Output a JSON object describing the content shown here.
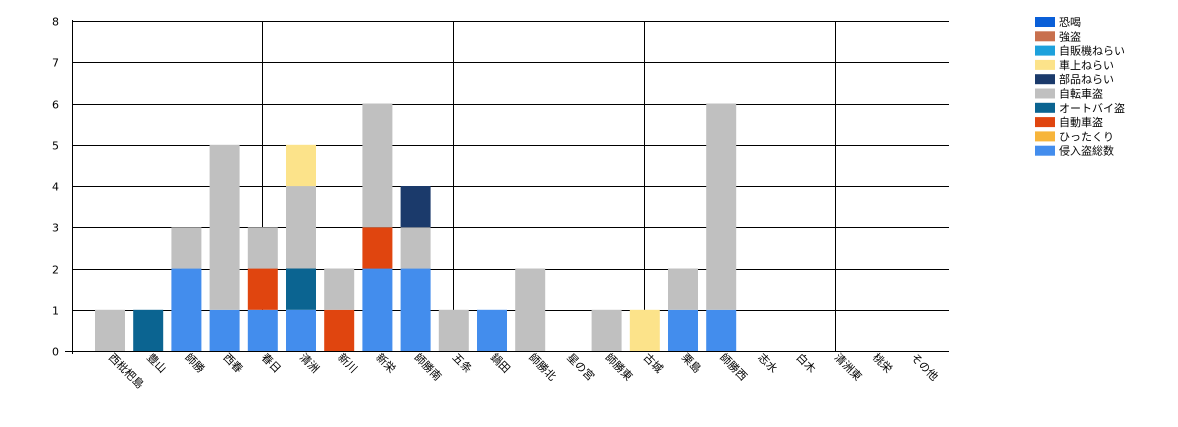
{
  "chart_data": {
    "type": "bar",
    "stacked": true,
    "title": "",
    "xlabel": "",
    "ylabel": "",
    "ylim": [
      0,
      8
    ],
    "yticks": [
      0,
      1,
      2,
      3,
      4,
      5,
      6,
      7,
      8
    ],
    "grid": true,
    "legend_position": "top-right",
    "categories": [
      "西枇杷島",
      "豊山",
      "師勝",
      "西春",
      "春日",
      "清洲",
      "新川",
      "新栄",
      "師勝南",
      "五条",
      "鍋田",
      "師勝北",
      "星の宮",
      "師勝東",
      "古城",
      "栗島",
      "師勝西",
      "志水",
      "白木",
      "清洲東",
      "桃栄",
      "その他"
    ],
    "series": [
      {
        "name": "恐喝",
        "color": "#0a5fd8",
        "values": [
          0,
          0,
          0,
          0,
          0,
          0,
          0,
          0,
          0,
          0,
          0,
          0,
          0,
          0,
          0,
          0,
          0,
          0,
          0,
          0,
          0,
          0
        ]
      },
      {
        "name": "強盗",
        "color": "#c8704e",
        "values": [
          0,
          0,
          0,
          0,
          0,
          0,
          0,
          0,
          0,
          0,
          0,
          0,
          0,
          0,
          0,
          0,
          0,
          0,
          0,
          0,
          0,
          0
        ]
      },
      {
        "name": "自販機ねらい",
        "color": "#1da1dc",
        "values": [
          0,
          0,
          0,
          0,
          0,
          0,
          0,
          0,
          0,
          0,
          0,
          0,
          0,
          0,
          0,
          0,
          0,
          0,
          0,
          0,
          0,
          0
        ]
      },
      {
        "name": "車上ねらい",
        "color": "#fce38a",
        "values": [
          0,
          0,
          0,
          0,
          0,
          1,
          0,
          0,
          0,
          0,
          0,
          0,
          0,
          0,
          1,
          0,
          0,
          0,
          0,
          0,
          0,
          0
        ]
      },
      {
        "name": "部品ねらい",
        "color": "#1b3a6b",
        "values": [
          0,
          0,
          0,
          0,
          0,
          0,
          0,
          0,
          1,
          0,
          0,
          0,
          0,
          0,
          0,
          0,
          0,
          0,
          0,
          0,
          0,
          0
        ]
      },
      {
        "name": "自転車盗",
        "color": "#c0c0c0",
        "values": [
          1,
          0,
          1,
          4,
          1,
          2,
          1,
          3,
          1,
          1,
          0,
          2,
          0,
          1,
          0,
          1,
          5,
          0,
          0,
          0,
          0,
          0
        ]
      },
      {
        "name": "オートバイ盗",
        "color": "#0b6491",
        "values": [
          0,
          1,
          0,
          0,
          0,
          1,
          0,
          0,
          0,
          0,
          0,
          0,
          0,
          0,
          0,
          0,
          0,
          0,
          0,
          0,
          0,
          0
        ]
      },
      {
        "name": "自動車盗",
        "color": "#e0450f",
        "values": [
          0,
          0,
          0,
          0,
          1,
          0,
          1,
          1,
          0,
          0,
          0,
          0,
          0,
          0,
          0,
          0,
          0,
          0,
          0,
          0,
          0,
          0
        ]
      },
      {
        "name": "ひったくり",
        "color": "#f7b53b",
        "values": [
          0,
          0,
          0,
          0,
          0,
          0,
          0,
          0,
          0,
          0,
          0,
          0,
          0,
          0,
          0,
          0,
          0,
          0,
          0,
          0,
          0,
          0
        ]
      },
      {
        "name": "侵入盗総数",
        "color": "#438ded",
        "values": [
          0,
          0,
          2,
          1,
          1,
          1,
          0,
          2,
          2,
          0,
          1,
          0,
          0,
          0,
          0,
          1,
          1,
          0,
          0,
          0,
          0,
          0
        ]
      }
    ]
  }
}
